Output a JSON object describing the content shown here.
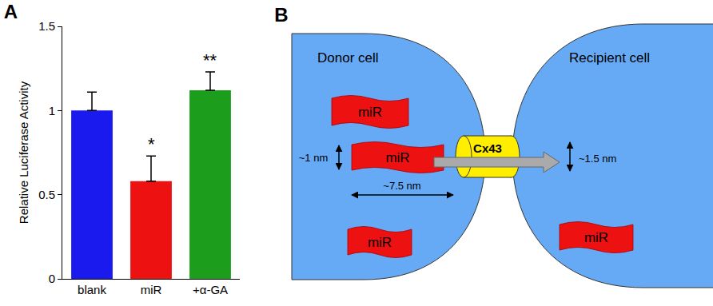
{
  "chart_data": {
    "type": "bar",
    "title": "A",
    "categories": [
      "blank",
      "miR",
      "+α-GA"
    ],
    "values": [
      1.0,
      0.58,
      1.12
    ],
    "error": [
      0.11,
      0.15,
      0.11
    ],
    "colors": [
      "#1a1aee",
      "#ee1111",
      "#1c9e1c"
    ],
    "ylabel": "Relative Luciferase Activity",
    "ylim": [
      0,
      1.5
    ],
    "yticks": [
      0,
      0.5,
      1,
      1.5
    ],
    "grid": false,
    "annotations": [
      {
        "x": "miR",
        "text": "*"
      },
      {
        "x": "+α-GA",
        "text": "**"
      }
    ]
  },
  "diagram": {
    "panel": "B",
    "cells": [
      {
        "label": "Donor cell",
        "molecules": [
          "miR",
          "miR",
          "miR"
        ]
      },
      {
        "label": "Recipient cell",
        "molecules": [
          "miR"
        ]
      }
    ],
    "channel": "Cx43",
    "dimensions": {
      "miR_height": "~1 nm",
      "miR_length": "~7.5 nm",
      "pore": "~1.5 nm"
    }
  }
}
